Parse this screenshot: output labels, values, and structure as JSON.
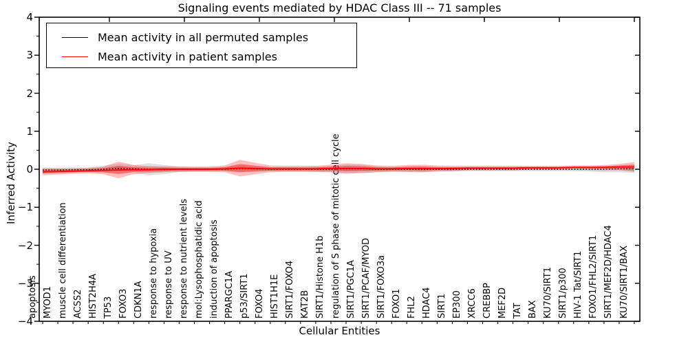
{
  "title": "Signaling events mediated by HDAC Class III -- 71 samples",
  "axes": {
    "x_label": "Cellular Entities",
    "y_label": "Inferred Activity",
    "y_tick_labels": [
      "4",
      "3",
      "2",
      "1",
      "0",
      "−1",
      "−2",
      "−3",
      "−4"
    ]
  },
  "legend": {
    "items": [
      {
        "label": "Mean activity in all permuted samples",
        "color": "#000000"
      },
      {
        "label": "Mean activity in patient samples",
        "color": "#ff0000"
      }
    ],
    "position": "upper left"
  },
  "chart_data": {
    "type": "line",
    "title": "Signaling events mediated by HDAC Class III -- 71 samples",
    "xlabel": "Cellular Entities",
    "ylabel": "Inferred Activity",
    "ylim": [
      -4,
      4
    ],
    "y_ticks": [
      4,
      3,
      2,
      1,
      0,
      -1,
      -2,
      -3,
      -4
    ],
    "grid": false,
    "legend_position": "upper left",
    "categories": [
      "apoptosis",
      "MYOD1",
      "muscle cell differentiation",
      "ACSS2",
      "HIST2H4A",
      "TP53",
      "FOXO3",
      "CDKN1A",
      "response to hypoxia",
      "response to UV",
      "response to nutrient levels",
      "mol:Lysophosphatidic acid",
      "induction of apoptosis",
      "PPARGC1A",
      "p53/SIRT1",
      "FOXO4",
      "HIST1H1E",
      "SIRT1/FOXO4",
      "KAT2B",
      "SIRT1/Histone H1b",
      "regulation of S phase of mitotic cell cycle",
      "SIRT1/PGC1A",
      "SIRT1/PCAF/MYOD",
      "SIRT1/FOXO3a",
      "FOXO1",
      "FHL2",
      "HDAC4",
      "SIRT1",
      "EP300",
      "XRCC6",
      "CREBBP",
      "MEF2D",
      "TAT",
      "BAX",
      "KU70/SIRT1",
      "SIRT1/p300",
      "HIV-1 Tat/SIRT1",
      "FOXO1/FHL2/SIRT1",
      "SIRT1/MEF2D/HDAC4",
      "KU70/SIRT1/BAX"
    ],
    "series": [
      {
        "name": "Mean activity in all permuted samples",
        "color": "#000000",
        "line_style": "dotted",
        "band_color": "#888888",
        "values": [
          -0.02,
          -0.02,
          -0.01,
          -0.01,
          0.0,
          0.02,
          0.01,
          0.0,
          -0.01,
          0.0,
          0.0,
          0.0,
          0.0,
          0.02,
          0.01,
          0.0,
          0.0,
          0.0,
          0.0,
          0.0,
          0.01,
          0.01,
          0.0,
          0.0,
          0.0,
          0.0,
          0.0,
          0.0,
          0.0,
          0.0,
          0.0,
          0.0,
          0.0,
          0.0,
          0.0,
          0.0,
          0.0,
          0.0,
          0.01,
          0.01
        ],
        "band_halfwidth": [
          0.07,
          0.06,
          0.06,
          0.06,
          0.09,
          0.12,
          0.1,
          0.16,
          0.12,
          0.07,
          0.06,
          0.06,
          0.06,
          0.1,
          0.08,
          0.06,
          0.06,
          0.06,
          0.07,
          0.08,
          0.11,
          0.11,
          0.08,
          0.06,
          0.07,
          0.08,
          0.06,
          0.06,
          0.05,
          0.05,
          0.05,
          0.05,
          0.05,
          0.05,
          0.05,
          0.05,
          0.06,
          0.08,
          0.09,
          0.11
        ]
      },
      {
        "name": "Mean activity in patient samples",
        "color": "#ff0000",
        "line_style": "solid",
        "band_color": "#ff0000",
        "values": [
          -0.07,
          -0.06,
          -0.05,
          -0.04,
          -0.03,
          -0.02,
          -0.01,
          -0.01,
          0.0,
          0.0,
          0.0,
          0.0,
          0.01,
          0.03,
          0.02,
          0.01,
          0.01,
          0.01,
          0.01,
          0.02,
          0.02,
          0.02,
          0.01,
          0.01,
          0.02,
          0.02,
          0.02,
          0.02,
          0.03,
          0.03,
          0.03,
          0.03,
          0.04,
          0.04,
          0.04,
          0.05,
          0.05,
          0.05,
          0.06,
          0.06
        ],
        "band_halfwidth": [
          0.09,
          0.08,
          0.07,
          0.07,
          0.1,
          0.22,
          0.12,
          0.09,
          0.08,
          0.07,
          0.07,
          0.07,
          0.09,
          0.22,
          0.15,
          0.09,
          0.08,
          0.08,
          0.08,
          0.1,
          0.14,
          0.12,
          0.09,
          0.08,
          0.09,
          0.1,
          0.08,
          0.07,
          0.06,
          0.06,
          0.06,
          0.06,
          0.05,
          0.05,
          0.05,
          0.05,
          0.05,
          0.06,
          0.08,
          0.13
        ]
      }
    ]
  }
}
